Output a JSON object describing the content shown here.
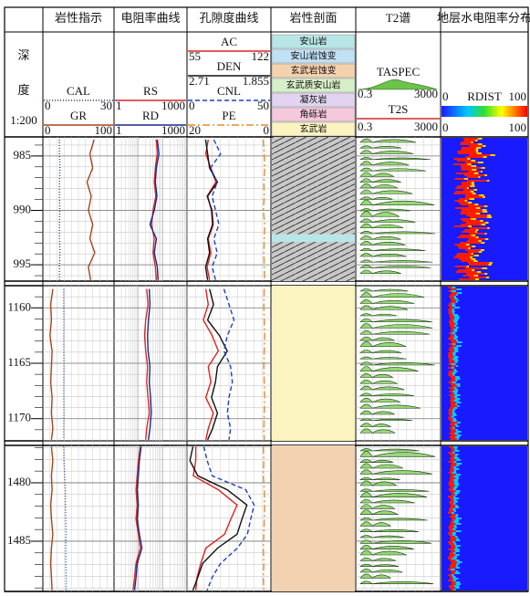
{
  "header": {
    "depth_labels": [
      "深",
      "度",
      "1:200"
    ]
  },
  "tracks": [
    {
      "title": "岩性指示",
      "scale": "linear",
      "curves": [
        {
          "name": "CAL",
          "range": [
            0,
            30
          ],
          "color": "#2b3a8f",
          "dash": "1,2"
        },
        {
          "name": "GR",
          "range": [
            0,
            100
          ],
          "color": "#a5451c",
          "dash": "none"
        }
      ]
    },
    {
      "title": "电阻率曲线",
      "scale": "log",
      "curves": [
        {
          "name": "RS",
          "range": [
            1,
            1000
          ],
          "color": "#d42a2a",
          "dash": "none"
        },
        {
          "name": "RD",
          "range": [
            1,
            1000
          ],
          "color": "#1c2a8a",
          "dash": "none"
        }
      ]
    },
    {
      "title": "孔隙度曲线",
      "scale": "linear",
      "curves": [
        {
          "name": "AC",
          "range": [
            55,
            122
          ],
          "color": "#e02020",
          "dash": "none"
        },
        {
          "name": "DEN",
          "range": [
            2.71,
            1.855
          ],
          "color": "#111111",
          "dash": "none"
        },
        {
          "name": "CNL",
          "range": [
            0,
            50
          ],
          "color": "#1f3fc0",
          "dash": "5,3"
        },
        {
          "name": "PE",
          "range": [
            20,
            0
          ],
          "color": "#e88a2a",
          "dash": "8,3,2,3"
        }
      ]
    },
    {
      "title": "岩性剖面"
    },
    {
      "title": "T2谱",
      "spectra": [
        {
          "name": "TASPEC",
          "range": [
            0.3,
            3000
          ]
        },
        {
          "name": "T2S",
          "range": [
            0.3,
            3000
          ]
        }
      ]
    },
    {
      "title": "地层水电阻率分布",
      "image": {
        "name": "RDIST",
        "range": [
          0,
          100
        ]
      },
      "colorbar_labels": [
        0,
        100
      ]
    }
  ],
  "lithology_legend": [
    {
      "name": "安山岩",
      "color": "#b8e6e6"
    },
    {
      "name": "安山岩蚀变",
      "color": "#bfe0f5"
    },
    {
      "name": "玄武岩蚀变",
      "color": "#f5d2ae"
    },
    {
      "name": "玄武质安山岩",
      "color": "#d6efc8"
    },
    {
      "name": "凝灰岩",
      "color": "#e2d4f0"
    },
    {
      "name": "角砾岩",
      "color": "#f5c8dc"
    },
    {
      "name": "玄武岩",
      "color": "#fbf3c0"
    }
  ],
  "panels": [
    {
      "depth_lim": [
        983.25,
        996.5
      ],
      "depth_ticks": [
        985,
        990,
        995
      ],
      "depth": [
        983.5,
        984.8,
        986.1,
        987.4,
        988.7,
        990,
        991.3,
        992.6,
        993.9,
        995.2,
        996.4
      ],
      "CAL": [
        7,
        7,
        7.2,
        7,
        7,
        7.1,
        7,
        7,
        7.2,
        7,
        7
      ],
      "GR": [
        72,
        66,
        70,
        62,
        68,
        64,
        70,
        66,
        73,
        64,
        67
      ],
      "RS": [
        55,
        60,
        50,
        45,
        52,
        40,
        35,
        45,
        40,
        50,
        55
      ],
      "RD": [
        60,
        70,
        55,
        50,
        58,
        45,
        30,
        55,
        45,
        60,
        65
      ],
      "AC": [
        72,
        70,
        74,
        78,
        71,
        75,
        76,
        72,
        74,
        71,
        73
      ],
      "DEN": [
        2.52,
        2.5,
        2.48,
        2.4,
        2.5,
        2.46,
        2.45,
        2.5,
        2.48,
        2.52,
        2.5
      ],
      "CNL": [
        16,
        20,
        14,
        18,
        15,
        17,
        19,
        16,
        18,
        15,
        17
      ],
      "PE": [
        1.8,
        1.6,
        1.5,
        1.7,
        1.6,
        1.8,
        1.5,
        1.6,
        1.7,
        1.6,
        1.5
      ],
      "lithology": [
        {
          "top": 983.25,
          "bottom": 992.2,
          "type": 4,
          "color": "#c8c8c8"
        },
        {
          "top": 992.2,
          "bottom": 992.9,
          "type": 0,
          "color": "#b8e6e6"
        },
        {
          "top": 992.9,
          "bottom": 996.5,
          "type": 4,
          "color": "#c8c8c8"
        }
      ]
    },
    {
      "depth_lim": [
        1158,
        1172
      ],
      "depth_ticks": [
        1160,
        1165,
        1170
      ],
      "depth": [
        1158.3,
        1159.7,
        1161.1,
        1162.5,
        1163.9,
        1165.3,
        1166.7,
        1168.1,
        1169.5,
        1170.9,
        1171.9
      ],
      "CAL": [
        8.8,
        8.8,
        8.9,
        8.8,
        8.8,
        8.9,
        8.8,
        8.8,
        8.9,
        8.8,
        8.8
      ],
      "GR": [
        14,
        11,
        12,
        10,
        13,
        12,
        11,
        13,
        12,
        14,
        12
      ],
      "RS": [
        22,
        25,
        20,
        18,
        20,
        24,
        22,
        25,
        28,
        22,
        20
      ],
      "RD": [
        28,
        30,
        26,
        24,
        25,
        30,
        28,
        32,
        34,
        30,
        26
      ],
      "AC": [
        70,
        72,
        68,
        75,
        80,
        72,
        74,
        70,
        76,
        72,
        70
      ],
      "DEN": [
        2.48,
        2.44,
        2.5,
        2.38,
        2.3,
        2.4,
        2.42,
        2.46,
        2.4,
        2.45,
        2.5
      ],
      "CNL": [
        22,
        25,
        28,
        24,
        22,
        26,
        27,
        25,
        24,
        26,
        25
      ],
      "PE": [
        1.6,
        1.7,
        1.6,
        1.5,
        1.6,
        1.7,
        1.6,
        1.5,
        1.6,
        1.7,
        1.6
      ],
      "lithology": [
        {
          "top": 1158,
          "bottom": 1172,
          "type": 6,
          "color": "#fbf3c0"
        }
      ]
    },
    {
      "depth_lim": [
        1476.8,
        1489.3
      ],
      "depth_ticks": [
        1480,
        1485
      ],
      "depth": [
        1476.9,
        1478.1,
        1479.4,
        1480.6,
        1481.9,
        1483.1,
        1484.4,
        1485.6,
        1486.9,
        1488.1,
        1489.2
      ],
      "CAL": [
        8.8,
        8.9,
        9.2,
        9.5,
        9.5,
        9.6,
        9.8,
        9.6,
        9.7,
        9.8,
        9.8
      ],
      "GR": [
        12,
        14,
        12,
        13,
        11,
        12,
        14,
        12,
        11,
        12,
        13
      ],
      "RS": [
        12,
        10,
        9,
        8,
        9,
        8,
        10,
        12,
        8,
        7,
        6
      ],
      "RD": [
        13,
        11,
        10,
        9,
        10,
        9,
        11,
        14,
        9,
        8,
        7
      ],
      "AC": [
        62,
        62,
        60,
        80,
        95,
        90,
        85,
        70,
        66,
        63,
        62
      ],
      "DEN": [
        2.65,
        2.68,
        2.6,
        2.3,
        2.1,
        2.15,
        2.2,
        2.4,
        2.55,
        2.6,
        2.65
      ],
      "CNL": [
        10,
        12,
        15,
        35,
        40,
        38,
        36,
        30,
        20,
        15,
        12
      ],
      "PE": [
        1.8,
        1.7,
        1.8,
        1.6,
        1.5,
        1.6,
        1.7,
        1.8,
        1.7,
        1.8,
        1.7
      ],
      "lithology": [
        {
          "top": 1476.8,
          "bottom": 1489.3,
          "type": 2,
          "color": "#f2d2b0"
        }
      ]
    }
  ]
}
